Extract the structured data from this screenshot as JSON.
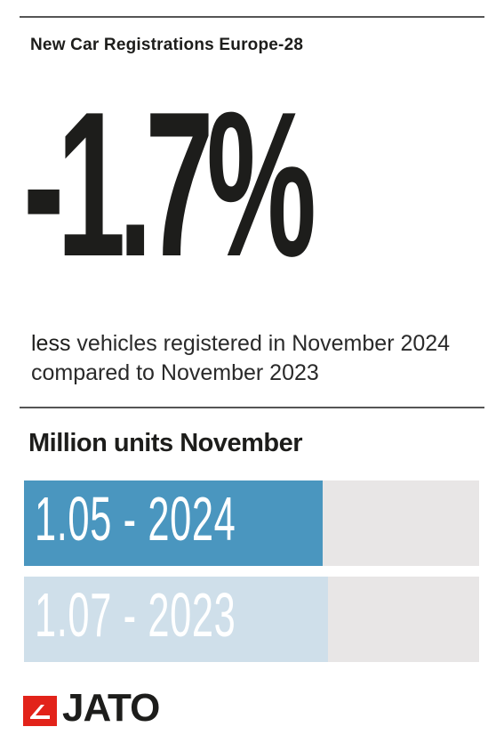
{
  "header": {
    "title": "New Car Registrations Europe-28",
    "headline_value": "-1.7%",
    "desc_emphasis": "less",
    "desc_rest": " vehicles registered in November 2024 compared to November 2023"
  },
  "chart_data": {
    "type": "bar",
    "title": "Million units November",
    "orientation": "horizontal",
    "xlim": [
      0,
      1.6
    ],
    "categories": [
      "2024",
      "2023"
    ],
    "values": [
      1.05,
      1.07
    ],
    "labels": [
      "1.05 - 2024",
      "1.07 - 2023"
    ],
    "colors": [
      "#4a96bf",
      "#cfdfea"
    ],
    "track_color": "#e8e6e6"
  },
  "brand": {
    "name": "JATO",
    "mark_color": "#e2231a"
  }
}
